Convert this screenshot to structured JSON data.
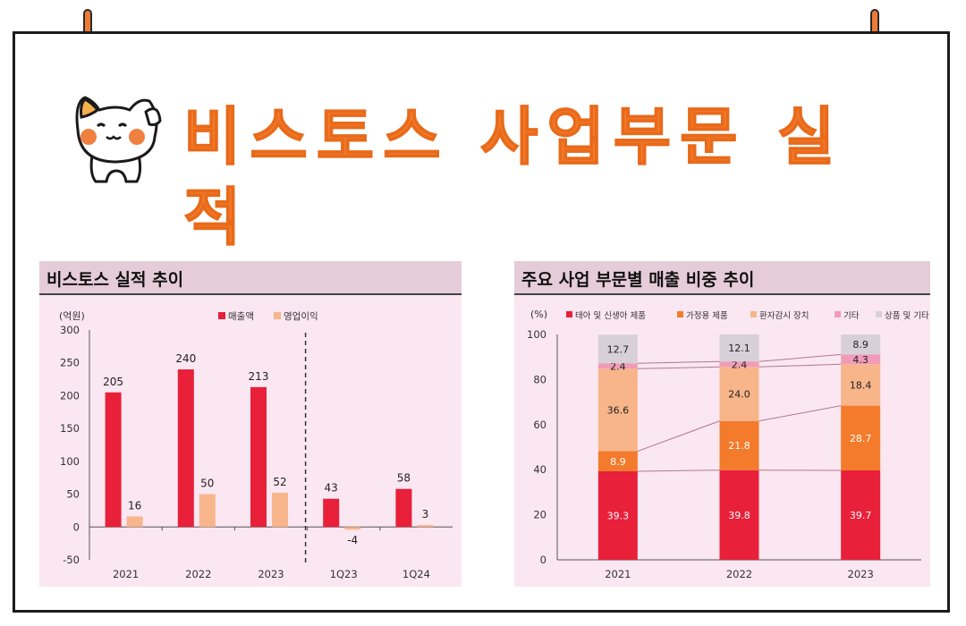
{
  "title": "비스토스 사업부문 실적",
  "colors": {
    "accent": "#f27a2a",
    "sales": "#e8203a",
    "op": "#f9b58c",
    "s1": "#e8203a",
    "s2": "#f37b2b",
    "s3": "#f8b58a",
    "s4": "#f19cb7",
    "s5": "#d8d0d8"
  },
  "chart_data": [
    {
      "type": "bar",
      "title": "비스토스 실적 추이",
      "unit": "(억원)",
      "categories": [
        "2021",
        "2022",
        "2023",
        "1Q23",
        "1Q24"
      ],
      "series": [
        {
          "name": "매출액",
          "values": [
            205,
            240,
            213,
            43,
            58
          ]
        },
        {
          "name": "영업이익",
          "values": [
            16,
            50,
            52,
            -4,
            3
          ]
        }
      ],
      "ylim": [
        -50,
        300
      ],
      "yticks": [
        "300",
        "250",
        "200",
        "150",
        "100",
        "50",
        "0",
        "-50"
      ],
      "legend": "top-right",
      "divider": "dashed line between 2023 and 1Q23"
    },
    {
      "type": "bar",
      "stacked": true,
      "title": "주요 사업 부문별 매출 비중 추이",
      "unit": "(%)",
      "categories": [
        "2021",
        "2022",
        "2023"
      ],
      "series": [
        {
          "name": "태아 및 신생아 제품",
          "values": [
            39.3,
            39.8,
            39.7
          ]
        },
        {
          "name": "가정용 제품",
          "values": [
            8.9,
            21.8,
            28.7
          ]
        },
        {
          "name": "환자감시 장치",
          "values": [
            36.6,
            24.0,
            18.4
          ]
        },
        {
          "name": "기타",
          "values": [
            2.4,
            2.4,
            4.3
          ]
        },
        {
          "name": "상품 및 기타",
          "values": [
            12.7,
            12.1,
            8.9
          ]
        }
      ],
      "ylim": [
        0,
        100
      ],
      "yticks": [
        "100",
        "80",
        "60",
        "40",
        "20",
        "0"
      ],
      "legend": "top",
      "labels": [
        [
          "39.3",
          "39.8",
          "39.7"
        ],
        [
          "8.9",
          "21.8",
          "28.7"
        ],
        [
          "36.6",
          "24.0",
          "18.4"
        ],
        [
          "2.4",
          "2.4",
          "4.3"
        ],
        [
          "12.7",
          "12.1",
          "8.9"
        ]
      ]
    }
  ]
}
